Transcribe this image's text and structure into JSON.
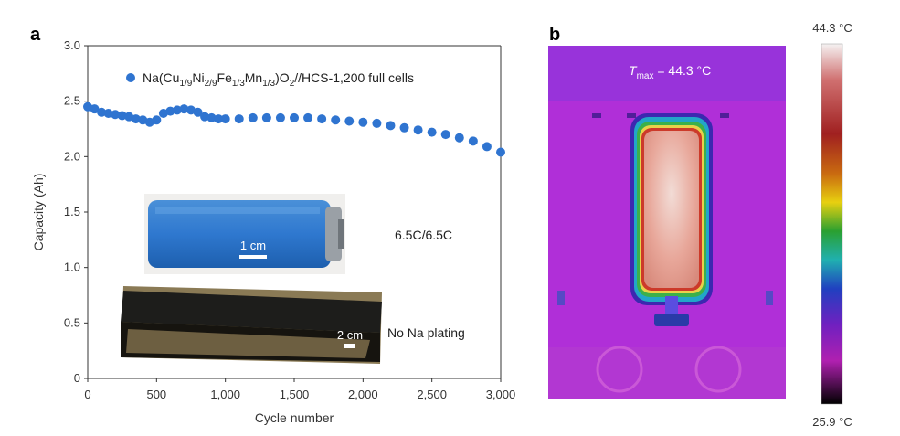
{
  "panels": {
    "a_label": "a",
    "b_label": "b"
  },
  "chart_data": {
    "type": "scatter",
    "legend": {
      "prefix": "Na(Cu",
      "sub1": "1/9",
      "mid1": "Ni",
      "sub2": "2/9",
      "mid2": "Fe",
      "sub3": "1/3",
      "mid3": "Mn",
      "sub4": "1/3",
      "mid4": ")O",
      "sub5": "2",
      "suffix": "//HCS-1,200 full cells",
      "placement": "top-left"
    },
    "xlabel": "Cycle number",
    "ylabel": "Capacity (Ah)",
    "xlim": [
      0,
      3000
    ],
    "ylim": [
      0,
      3.0
    ],
    "xticks": [
      "0",
      "500",
      "1,000",
      "1,500",
      "2,000",
      "2,500",
      "3,000"
    ],
    "yticks": [
      "0",
      "0.5",
      "1.0",
      "1.5",
      "2.0",
      "2.5",
      "3.0"
    ],
    "series_color": "#2f74d0",
    "x": [
      0,
      50,
      100,
      150,
      200,
      250,
      300,
      350,
      400,
      450,
      500,
      550,
      600,
      650,
      700,
      750,
      800,
      850,
      900,
      950,
      1000,
      1100,
      1200,
      1300,
      1400,
      1500,
      1600,
      1700,
      1800,
      1900,
      2000,
      2100,
      2200,
      2300,
      2400,
      2500,
      2600,
      2700,
      2800,
      2900,
      3000
    ],
    "y": [
      2.45,
      2.43,
      2.4,
      2.39,
      2.38,
      2.37,
      2.36,
      2.34,
      2.33,
      2.31,
      2.33,
      2.39,
      2.41,
      2.42,
      2.43,
      2.42,
      2.4,
      2.36,
      2.35,
      2.34,
      2.34,
      2.34,
      2.35,
      2.35,
      2.35,
      2.35,
      2.35,
      2.34,
      2.33,
      2.32,
      2.31,
      2.3,
      2.28,
      2.26,
      2.24,
      2.22,
      2.2,
      2.17,
      2.14,
      2.09,
      2.04
    ],
    "annotations": {
      "rate": "6.5C/6.5C",
      "plating": "No Na plating",
      "cell_scale": "1 cm",
      "electrode_scale": "2 cm"
    }
  },
  "thermal": {
    "tmax_symbol": "T",
    "tmax_sub": "max",
    "tmax_value": " = 44.3 °C",
    "colorbar_max": "44.3 °C",
    "colorbar_min": "25.9 °C"
  }
}
